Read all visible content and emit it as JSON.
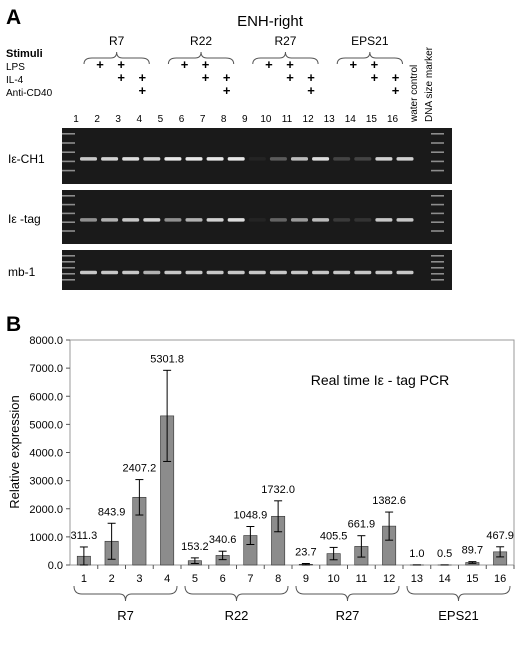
{
  "panel_a": {
    "letter": "A",
    "title": "ENH-right",
    "stimuli_header": "Stimuli",
    "stimuli": [
      "LPS",
      "IL-4",
      "Anti-CD40"
    ],
    "plus_sign": "+",
    "groups": [
      "R7",
      "R22",
      "R27",
      "EPS21"
    ],
    "lane_numbers": [
      "1",
      "2",
      "3",
      "4",
      "5",
      "6",
      "7",
      "8",
      "9",
      "10",
      "11",
      "12",
      "13",
      "14",
      "15",
      "16"
    ],
    "extra_lanes": [
      "water control",
      "DNA size marker"
    ],
    "gel_rows": [
      "Iε-CH1",
      "Iε -tag",
      "mb-1"
    ],
    "stimuli_pattern": [
      [
        0,
        0,
        0
      ],
      [
        1,
        0,
        0
      ],
      [
        1,
        1,
        0
      ],
      [
        0,
        1,
        1
      ],
      [
        0,
        0,
        0
      ],
      [
        1,
        0,
        0
      ],
      [
        1,
        1,
        0
      ],
      [
        0,
        1,
        1
      ],
      [
        0,
        0,
        0
      ],
      [
        1,
        0,
        0
      ],
      [
        1,
        1,
        0
      ],
      [
        0,
        1,
        1
      ],
      [
        0,
        0,
        0
      ],
      [
        1,
        0,
        0
      ],
      [
        1,
        1,
        0
      ],
      [
        0,
        1,
        1
      ]
    ],
    "band_intensity": {
      "Iε-CH1": [
        0.8,
        0.85,
        0.9,
        0.85,
        0.95,
        0.95,
        0.95,
        0.95,
        0.05,
        0.3,
        0.75,
        0.9,
        0.2,
        0.2,
        0.85,
        0.85
      ],
      "Iε -tag": [
        0.55,
        0.7,
        0.8,
        0.85,
        0.55,
        0.7,
        0.85,
        0.9,
        0.05,
        0.35,
        0.6,
        0.75,
        0.15,
        0.12,
        0.8,
        0.8
      ],
      "mb-1": [
        0.8,
        0.8,
        0.8,
        0.7,
        0.8,
        0.8,
        0.8,
        0.8,
        0.8,
        0.8,
        0.8,
        0.8,
        0.8,
        0.8,
        0.8,
        0.8
      ]
    }
  },
  "panel_b": {
    "letter": "B"
  },
  "chart_data": {
    "type": "bar",
    "title": "Real time Iε - tag PCR",
    "ylabel": "Relative expression",
    "xlabel": "",
    "ylim": [
      0,
      8000
    ],
    "yticks": [
      "0.0",
      "1000.0",
      "2000.0",
      "3000.0",
      "4000.0",
      "5000.0",
      "6000.0",
      "7000.0",
      "8000.0"
    ],
    "categories": [
      "1",
      "2",
      "3",
      "4",
      "5",
      "6",
      "7",
      "8",
      "9",
      "10",
      "11",
      "12",
      "13",
      "14",
      "15",
      "16"
    ],
    "values": [
      311.3,
      843.9,
      2407.2,
      5301.8,
      153.2,
      340.6,
      1048.9,
      1732.0,
      23.7,
      405.5,
      661.9,
      1382.6,
      1.0,
      0.5,
      89.7,
      467.9
    ],
    "value_labels": [
      "311.3",
      "843.9",
      "2407.2",
      "5301.8",
      "153.2",
      "340.6",
      "1048.9",
      "1732.0",
      "23.7",
      "405.5",
      "661.9",
      "1382.6",
      "1.0",
      "0.5",
      "89.7",
      "467.9"
    ],
    "errors": [
      330,
      640,
      630,
      1620,
      100,
      150,
      320,
      550,
      30,
      220,
      380,
      500,
      5,
      5,
      30,
      180
    ],
    "groups": [
      {
        "name": "R7",
        "bars": [
          1,
          4
        ]
      },
      {
        "name": "R22",
        "bars": [
          5,
          8
        ]
      },
      {
        "name": "R27",
        "bars": [
          9,
          12
        ]
      },
      {
        "name": "EPS21",
        "bars": [
          13,
          16
        ]
      }
    ],
    "bar_color": "#8c8c8c",
    "grid": false
  }
}
